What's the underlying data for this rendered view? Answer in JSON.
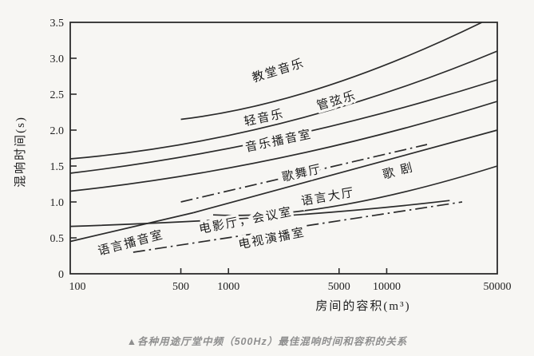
{
  "caption": {
    "text": "▲各种用途厅堂中频（500Hz）最佳混响时间和容积的关系"
  },
  "colors": {
    "ink": "#2b2b2b",
    "paper": "#f7f6f3",
    "caption_gray": "#8f8f8f"
  },
  "chart_data": {
    "type": "line",
    "title": "各种用途厅堂中频（500Hz）最佳混响时间和容积的关系",
    "xlabel": "房间的容积(m³)",
    "ylabel": "混响时间(s)",
    "x_scale": "log",
    "xlim": [
      100,
      50000
    ],
    "ylim": [
      0,
      3.5
    ],
    "x_ticks": [
      100,
      500,
      1000,
      5000,
      10000,
      50000
    ],
    "x_tick_labels": [
      "100",
      "500",
      "1000",
      "5000",
      "10000",
      "50000"
    ],
    "y_ticks": [
      0,
      0.5,
      1.0,
      1.5,
      2.0,
      2.5,
      3.0,
      3.5
    ],
    "y_tick_labels": [
      "0",
      "0.5",
      "1.0",
      "1.5",
      "2.0",
      "2.5",
      "3.0",
      "3.5"
    ],
    "grid": false,
    "legend_position": "labels-on-curves",
    "series": [
      {
        "id": "church-music",
        "name": "教堂音乐",
        "style": "solid",
        "points": [
          [
            500,
            2.15
          ],
          [
            4000,
            2.6
          ],
          [
            40000,
            3.5
          ]
        ],
        "label_at": [
          2100,
          2.78
        ],
        "label_rotation": -17
      },
      {
        "id": "orchestral-music",
        "name": "管弦乐",
        "style": "solid",
        "points": [
          [
            100,
            1.6
          ],
          [
            2200,
            2.1
          ],
          [
            50000,
            3.1
          ]
        ],
        "label_at": [
          4900,
          2.36
        ],
        "label_rotation": -16
      },
      {
        "id": "light-music",
        "name": "轻音乐",
        "style": "solid",
        "points": [
          [
            100,
            1.4
          ],
          [
            2200,
            1.9
          ],
          [
            50000,
            2.7
          ]
        ],
        "label_at": [
          1700,
          2.12
        ],
        "label_rotation": -12
      },
      {
        "id": "music-broadcast-studio",
        "name": "音乐播音室",
        "style": "solid",
        "points": [
          [
            100,
            1.15
          ],
          [
            2200,
            1.62
          ],
          [
            50000,
            2.4
          ]
        ],
        "label_at": [
          2100,
          1.8
        ],
        "label_rotation": -12
      },
      {
        "id": "dance-hall",
        "name": "歌舞厅",
        "style": "dash-dot",
        "points": [
          [
            500,
            1.0
          ],
          [
            18000,
            1.8
          ]
        ],
        "label_at": [
          2950,
          1.35
        ],
        "label_rotation": -13
      },
      {
        "id": "opera",
        "name": "歌 剧",
        "style": "solid",
        "points": [
          [
            600,
            0.85
          ],
          [
            50000,
            2.0
          ]
        ],
        "label_at": [
          12000,
          1.38
        ],
        "label_rotation": -15
      },
      {
        "id": "speech-hall",
        "name": "语言大厅",
        "style": "solid",
        "points": [
          [
            800,
            0.82
          ],
          [
            5000,
            0.95
          ],
          [
            50000,
            1.5
          ]
        ],
        "label_at": [
          4300,
          1.02
        ],
        "label_rotation": -10
      },
      {
        "id": "cinema-conference-room",
        "name": "电影厅，会议室",
        "style": "solid",
        "points": [
          [
            100,
            0.66
          ],
          [
            2000,
            0.8
          ],
          [
            25000,
            1.02
          ]
        ],
        "label_at": [
          1300,
          0.69
        ],
        "label_rotation": -11
      },
      {
        "id": "speech-broadcast-studio",
        "name": "语言播音室",
        "style": "solid",
        "points": [
          [
            100,
            0.45
          ],
          [
            600,
            0.85
          ]
        ],
        "label_at": [
          245,
          0.38
        ],
        "label_rotation": -15
      },
      {
        "id": "tv-studio",
        "name": "电视演播室",
        "style": "dash-dot",
        "points": [
          [
            250,
            0.3
          ],
          [
            30000,
            1.0
          ]
        ],
        "label_at": [
          1900,
          0.44
        ],
        "label_rotation": -11
      }
    ]
  }
}
